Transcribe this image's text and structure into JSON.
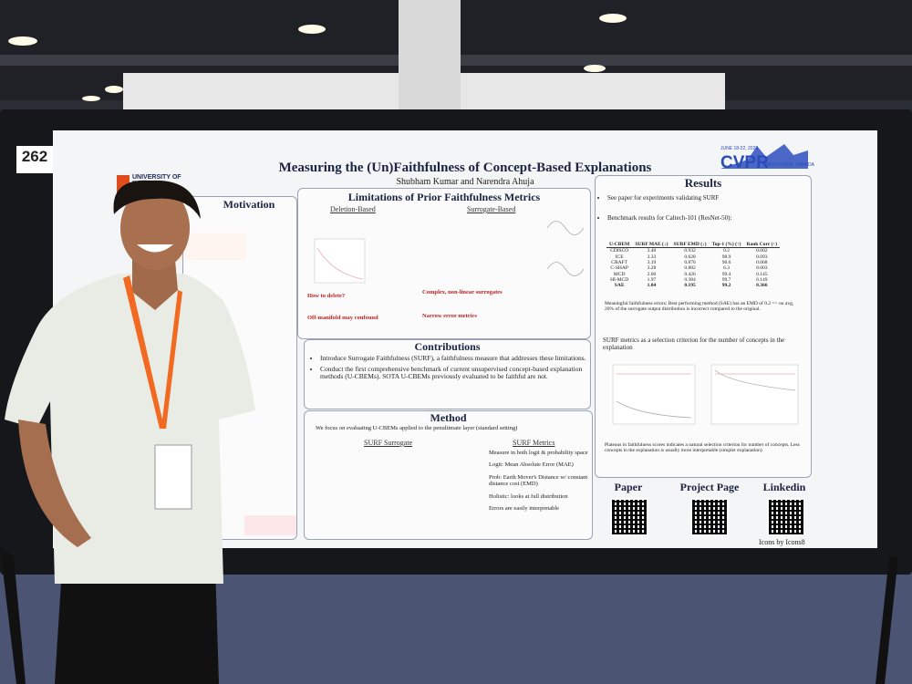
{
  "booth_number": "262",
  "poster": {
    "title": "Measuring the (Un)Faithfulness of Concept-Based Explanations",
    "authors": "Shubham Kumar and Narendra Ahuja",
    "university": "UNIVERSITY OF ILLINOIS",
    "conference": {
      "name": "CVPR",
      "dates": "JUNE 18-22, 2023",
      "location": "VANCOUVER, CANADA"
    },
    "motivation": {
      "heading": "Motivation"
    },
    "limitations": {
      "heading": "Limitations of Prior Faithfulness Metrics",
      "deletion": "Deletion-Based",
      "surrogate": "Surrogate-Based",
      "items": [
        "How to delete?",
        "Off-manifold may confound",
        "Complex, non-linear surrogates",
        "Narrow error metrics"
      ]
    },
    "contributions": {
      "heading": "Contributions",
      "items": [
        "Introduce Surrogate Faithfulness (SURF), a faithfulness measure that addresses these limitations.",
        "Conduct the first comprehensive benchmark of current unsupervised concept-based explanation methods (U-CBEMs). SOTA U-CBEMs previously evaluated to be faithful are not."
      ]
    },
    "method": {
      "heading": "Method",
      "intro": "We focus on evaluating U-CBEMs applied to the penultimate layer (standard setting)",
      "surrogate": "SURF Surrogate",
      "metrics": "SURF Metrics",
      "metric_items": [
        "Measure in both logit & probability space",
        "Logit: Mean Absolute Error (MAE)",
        "Prob: Earth Mover's Distance w/ constant distance cost (EMD)",
        "Holistic: looks at full distribution",
        "Errors are easily interpretable"
      ]
    },
    "results": {
      "heading": "Results",
      "items": [
        "See paper for experiments validating SURF",
        "Benchmark results for Caltech-101 (ResNet-50):"
      ],
      "table": {
        "header": [
          "U-CBEM",
          "SURF MAE (↓)",
          "SURF EMD (↓)",
          "Top-1 (%) (↑)",
          "Rank Corr (↑)"
        ],
        "rows": [
          [
            "CDISCO",
            "3.40",
            "0.932",
            "0.2",
            "0.002"
          ],
          [
            "ICE",
            "3.33",
            "0.628",
            "98.9",
            "0.093"
          ],
          [
            "CRAFT",
            "3.19",
            "0.876",
            "90.6",
            "0.068"
          ],
          [
            "C-SHAP",
            "3.28",
            "0.882",
            "6.3",
            "0.003"
          ],
          [
            "MCD",
            "2.60",
            "0.426",
            "99.4",
            "0.145"
          ],
          [
            "HI-MCD",
            "1.97",
            "0.384",
            "99.7",
            "0.149"
          ],
          [
            "SAE",
            "1.04",
            "0.195",
            "99.2",
            "0.366"
          ]
        ]
      },
      "note": "Meaningful faithfulness errors: Best performing method (SAE) has an EMD of 0.2 => on avg, 20% of the surrogate output distribution is incorrect compared to the original.",
      "selection": "SURF metrics as a selection criterion for the number of concepts in the explanation",
      "plateau": "Plateaus in faithfulness scores indicates a natural selection criterion for number of concepts. Less concepts in the explanation is usually more interpretable (simpler explanation)"
    },
    "links": [
      "Paper",
      "Project Page",
      "Linkedin"
    ],
    "credit": "Icons by Icons8"
  }
}
